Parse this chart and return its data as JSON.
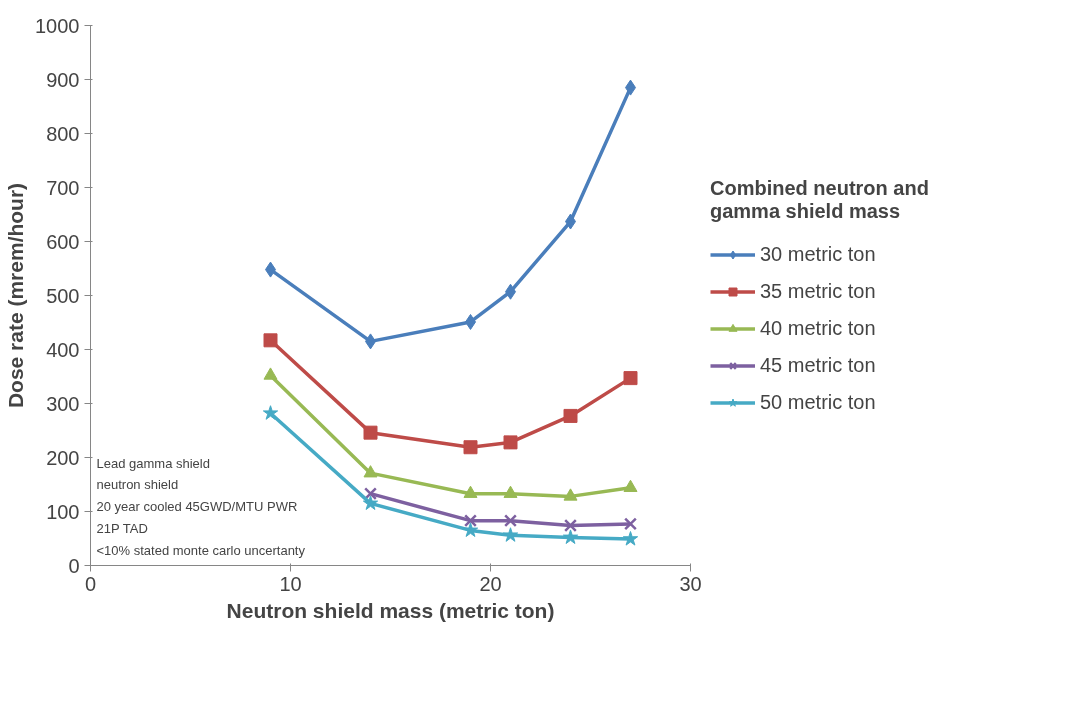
{
  "chart_data": {
    "type": "line",
    "xlabel": "Neutron shield mass (metric ton)",
    "ylabel": "Dose rate (mrem/hour)",
    "legend_title": "Combined neutron and gamma shield mass",
    "xlim": [
      0,
      30
    ],
    "xticks": [
      0,
      10,
      20,
      30
    ],
    "ylim": [
      0,
      1000
    ],
    "yticks": [
      0,
      100,
      200,
      300,
      400,
      500,
      600,
      700,
      800,
      900,
      1000
    ],
    "grid": false,
    "legend": "right",
    "series": [
      {
        "name": "30 metric ton",
        "color": "#4a7ebb",
        "marker": "diamond",
        "x": [
          9,
          14,
          19,
          21,
          24,
          27
        ],
        "values": [
          548,
          415,
          451,
          507,
          637,
          885
        ]
      },
      {
        "name": "35 metric ton",
        "color": "#be4b48",
        "marker": "square",
        "x": [
          9,
          14,
          19,
          21,
          24,
          27
        ],
        "values": [
          417,
          246,
          219,
          228,
          277,
          347
        ]
      },
      {
        "name": "40 metric ton",
        "color": "#98b954",
        "marker": "triangle",
        "x": [
          9,
          14,
          19,
          21,
          24,
          27
        ],
        "values": [
          352,
          171,
          133,
          133,
          128,
          144
        ]
      },
      {
        "name": "45 metric ton",
        "color": "#7d60a0",
        "marker": "cross",
        "x": [
          14,
          19,
          21,
          24,
          27
        ],
        "values": [
          133,
          83,
          83,
          74,
          77
        ]
      },
      {
        "name": "50 metric ton",
        "color": "#46aac5",
        "marker": "star",
        "x": [
          9,
          14,
          19,
          21,
          24,
          27
        ],
        "values": [
          282,
          115,
          65,
          56,
          52,
          49
        ]
      }
    ],
    "annotations": [
      "Lead gamma shield\nneutron shield\n20 year cooled 45GWD/MTU PWR\n21P TAD\n<10% stated monte carlo uncertanty"
    ]
  }
}
